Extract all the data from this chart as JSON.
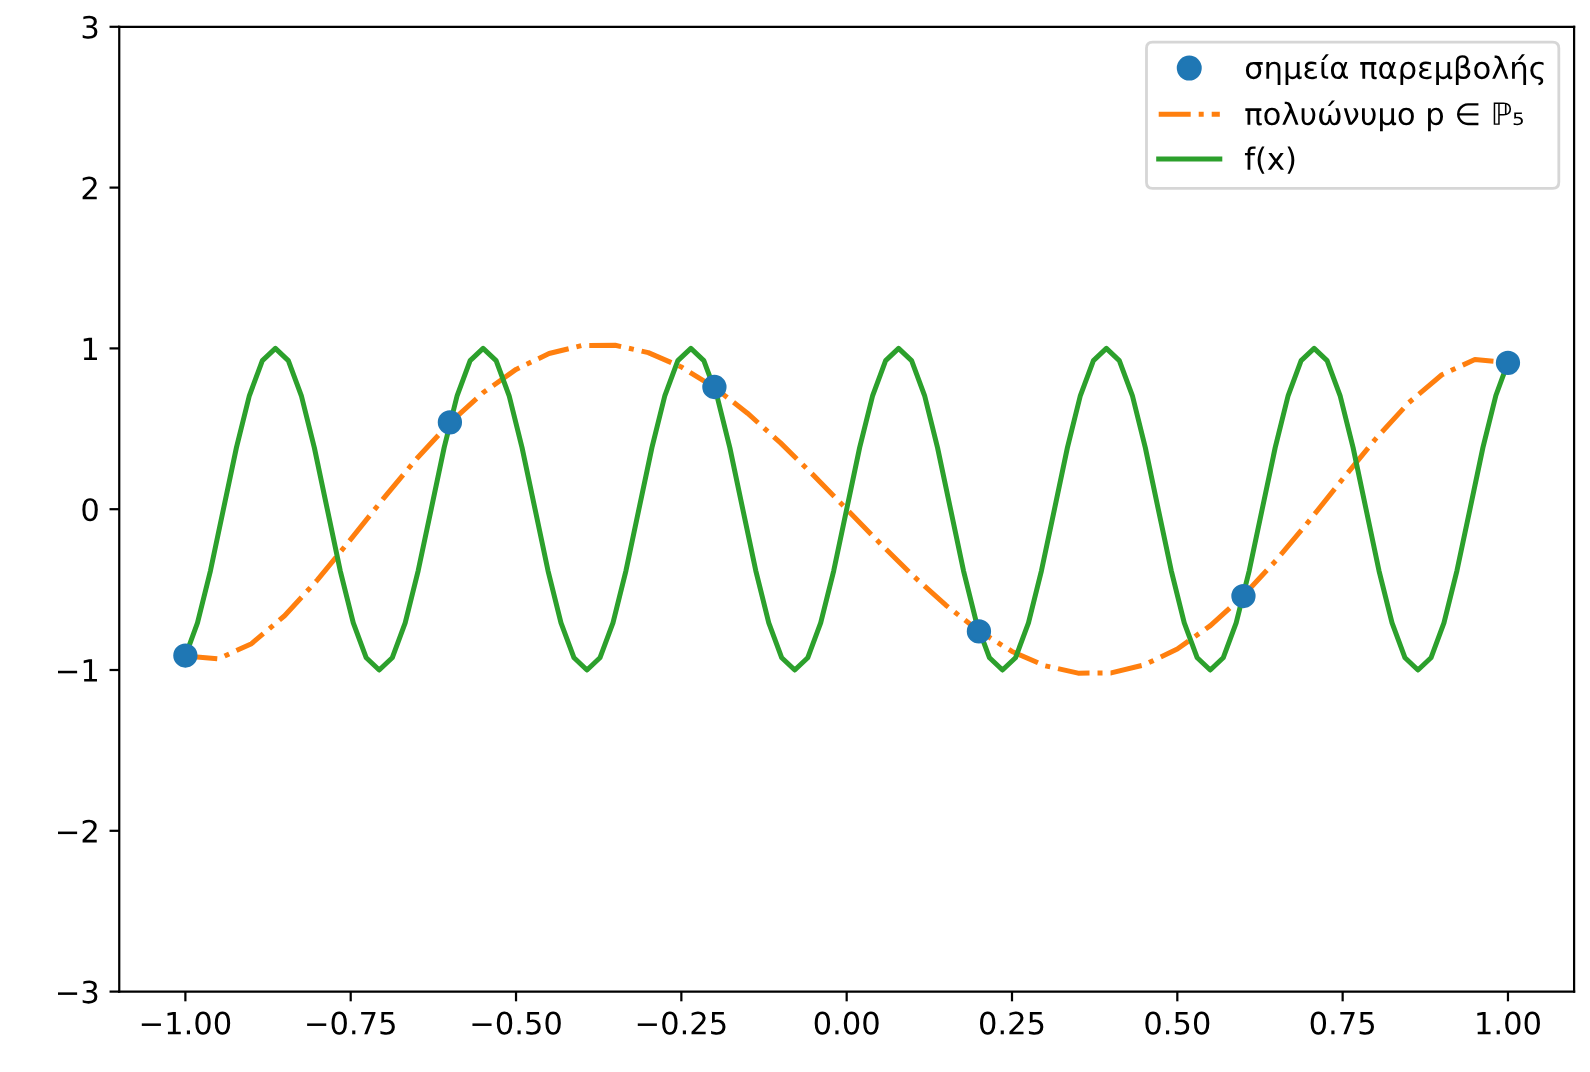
{
  "chart_data": {
    "type": "line",
    "xlim": [
      -1.1,
      1.1
    ],
    "ylim": [
      -3,
      3
    ],
    "xticks": [
      {
        "value": -1,
        "label": "−1.00"
      },
      {
        "value": -0.75,
        "label": "−0.75"
      },
      {
        "value": -0.5,
        "label": "−0.50"
      },
      {
        "value": -0.25,
        "label": "−0.25"
      },
      {
        "value": 0,
        "label": "0.00"
      },
      {
        "value": 0.25,
        "label": "0.25"
      },
      {
        "value": 0.5,
        "label": "0.50"
      },
      {
        "value": 0.75,
        "label": "0.75"
      },
      {
        "value": 1,
        "label": "1.00"
      }
    ],
    "yticks": [
      {
        "value": -3,
        "label": "−3"
      },
      {
        "value": -2,
        "label": "−2"
      },
      {
        "value": -1,
        "label": "−1"
      },
      0,
      1,
      2,
      3
    ],
    "grid": false,
    "legend": "top right",
    "series": [
      {
        "name": "σημεία παρεμβολής",
        "type": "scatter",
        "marker": "circle",
        "color": "#1f77b4",
        "x": [
          -1,
          -0.6,
          -0.2,
          0.2,
          0.6,
          1
        ],
        "values": [
          -0.91,
          0.54,
          0.76,
          -0.76,
          -0.54,
          0.91
        ]
      },
      {
        "name": "πολυώνυμο p ∈ ℙ₅",
        "line_style": "dashdot",
        "color": "#ff7f0e",
        "x": [
          -1,
          -0.95,
          -0.9,
          -0.85,
          -0.8,
          -0.75,
          -0.7,
          -0.65,
          -0.6,
          -0.55,
          -0.5,
          -0.45,
          -0.4,
          -0.35,
          -0.3,
          -0.25,
          -0.2,
          -0.15,
          -0.1,
          -0.05,
          0,
          0.05,
          0.1,
          0.15,
          0.2,
          0.25,
          0.3,
          0.35,
          0.4,
          0.45,
          0.5,
          0.55,
          0.6,
          0.65,
          0.7,
          0.75,
          0.8,
          0.85,
          0.9,
          0.95,
          1
        ],
        "values": [
          -0.913,
          -0.9306,
          -0.8362,
          -0.6626,
          -0.4383,
          -0.1875,
          0.0692,
          0.3152,
          0.537,
          0.724,
          0.8694,
          0.9683,
          1.0183,
          1.0195,
          0.9738,
          0.8845,
          0.757,
          0.5971,
          0.4124,
          0.2105,
          0,
          -0.2105,
          -0.4124,
          -0.5971,
          -0.757,
          -0.8845,
          -0.9738,
          -1.0195,
          -1.0183,
          -0.9683,
          -0.8694,
          -0.724,
          -0.537,
          -0.3152,
          -0.0692,
          0.1875,
          0.4383,
          0.6626,
          0.8362,
          0.9306,
          0.913
        ]
      },
      {
        "name": "f(x)",
        "line_style": "solid",
        "color": "#2ca02c",
        "x": [
          -1,
          -0.9817,
          -0.9621,
          -0.9425,
          -0.9228,
          -0.9032,
          -0.8836,
          -0.8639,
          -0.8443,
          -0.8247,
          -0.805,
          -0.7854,
          -0.7658,
          -0.7461,
          -0.7265,
          -0.7069,
          -0.6872,
          -0.6676,
          -0.648,
          -0.6283,
          -0.6087,
          -0.589,
          -0.5694,
          -0.5498,
          -0.5301,
          -0.5105,
          -0.4909,
          -0.4712,
          -0.4516,
          -0.432,
          -0.4123,
          -0.3927,
          -0.3731,
          -0.3534,
          -0.3338,
          -0.3142,
          -0.2945,
          -0.2749,
          -0.2553,
          -0.2356,
          -0.216,
          -0.1963,
          -0.1767,
          -0.1571,
          -0.1374,
          -0.1178,
          -0.0982,
          -0.0785,
          -0.0589,
          -0.0393,
          -0.0196,
          0,
          0.0196,
          0.0393,
          0.0589,
          0.0785,
          0.0982,
          0.1178,
          0.1374,
          0.1571,
          0.1767,
          0.1963,
          0.216,
          0.2356,
          0.2553,
          0.2749,
          0.2945,
          0.3142,
          0.3338,
          0.3534,
          0.3731,
          0.3927,
          0.4123,
          0.432,
          0.4516,
          0.4712,
          0.4909,
          0.5105,
          0.5301,
          0.5498,
          0.5694,
          0.589,
          0.6087,
          0.6283,
          0.648,
          0.6676,
          0.6872,
          0.7069,
          0.7265,
          0.7461,
          0.7658,
          0.7854,
          0.805,
          0.8247,
          0.8443,
          0.8639,
          0.8836,
          0.9032,
          0.9228,
          0.9425,
          0.9621,
          0.9817,
          1
        ],
        "values": [
          -0.913,
          -0.707,
          -0.383,
          0,
          0.383,
          0.707,
          0.924,
          1,
          0.924,
          0.707,
          0.383,
          0,
          -0.383,
          -0.707,
          -0.924,
          -1,
          -0.924,
          -0.707,
          -0.383,
          0,
          0.383,
          0.707,
          0.924,
          1,
          0.924,
          0.707,
          0.383,
          0,
          -0.383,
          -0.707,
          -0.924,
          -1,
          -0.924,
          -0.707,
          -0.383,
          0,
          0.383,
          0.707,
          0.924,
          1,
          0.924,
          0.707,
          0.383,
          0,
          -0.383,
          -0.707,
          -0.924,
          -1,
          -0.924,
          -0.707,
          -0.383,
          0,
          0.383,
          0.707,
          0.924,
          1,
          0.924,
          0.707,
          0.383,
          0,
          -0.383,
          -0.707,
          -0.924,
          -1,
          -0.924,
          -0.707,
          -0.383,
          0,
          0.383,
          0.707,
          0.924,
          1,
          0.924,
          0.707,
          0.383,
          0,
          -0.383,
          -0.707,
          -0.924,
          -1,
          -0.924,
          -0.707,
          -0.383,
          0,
          0.383,
          0.707,
          0.924,
          1,
          0.924,
          0.707,
          0.383,
          0,
          -0.383,
          -0.707,
          -0.924,
          -1,
          -0.924,
          -0.707,
          -0.383,
          0,
          0.383,
          0.707,
          0.913
        ]
      }
    ]
  }
}
